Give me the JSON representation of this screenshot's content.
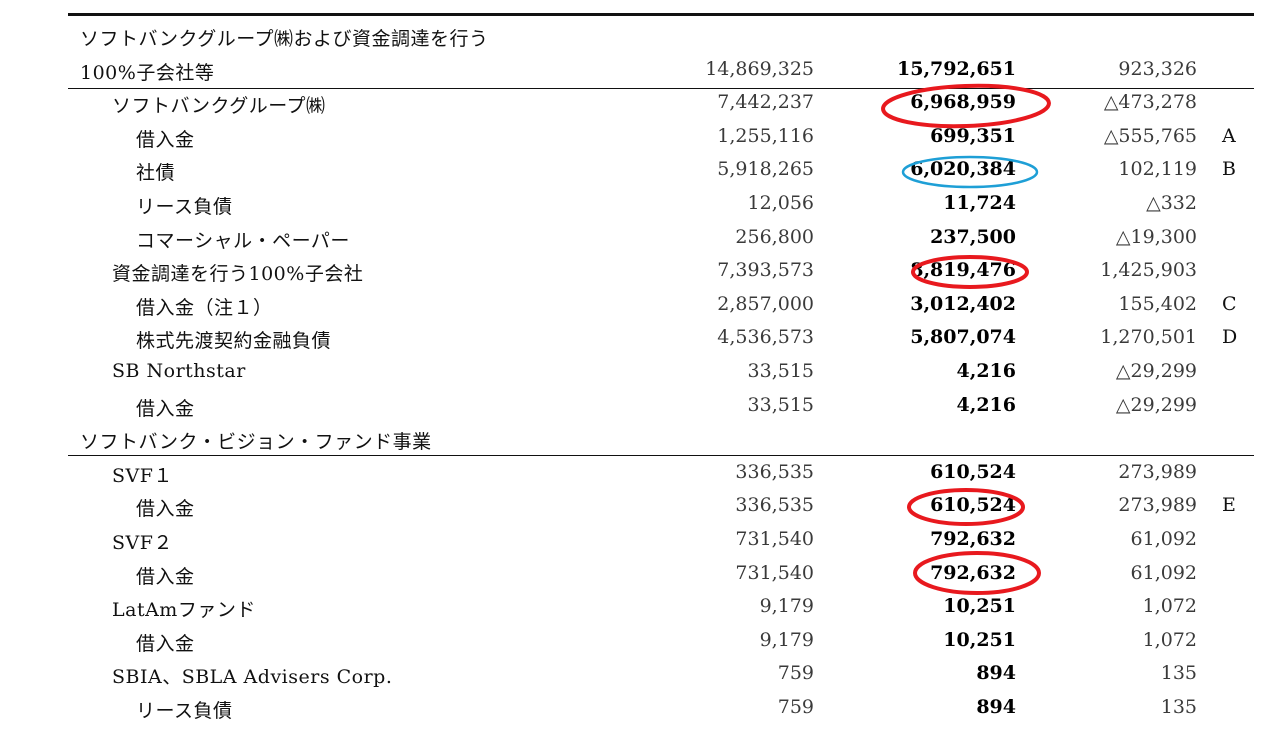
{
  "rows": [
    {
      "label": "ソフトバンクグループ㈱および資金調達を行う",
      "level": 0,
      "c1": "",
      "c2": "",
      "c3": "",
      "note": ""
    },
    {
      "label": "100%子会社等",
      "level": 0,
      "c1": "14,869,325",
      "c2": "15,792,651",
      "c3": "923,326",
      "note": ""
    },
    {
      "label": "ソフトバンクグループ㈱",
      "level": 1,
      "c1": "7,442,237",
      "c2": "6,968,959",
      "c3": "△473,278",
      "note": ""
    },
    {
      "label": "借入金",
      "level": 2,
      "c1": "1,255,116",
      "c2": "699,351",
      "c3": "△555,765",
      "note": "A"
    },
    {
      "label": "社債",
      "level": 2,
      "c1": "5,918,265",
      "c2": "6,020,384",
      "c3": "102,119",
      "note": "B"
    },
    {
      "label": "リース負債",
      "level": 2,
      "c1": "12,056",
      "c2": "11,724",
      "c3": "△332",
      "note": ""
    },
    {
      "label": "コマーシャル・ペーパー",
      "level": 2,
      "c1": "256,800",
      "c2": "237,500",
      "c3": "△19,300",
      "note": ""
    },
    {
      "label": "資金調達を行う100%子会社",
      "level": 1,
      "c1": "7,393,573",
      "c2": "8,819,476",
      "c3": "1,425,903",
      "note": ""
    },
    {
      "label": "借入金（注１）",
      "level": 2,
      "c1": "2,857,000",
      "c2": "3,012,402",
      "c3": "155,402",
      "note": "C"
    },
    {
      "label": "株式先渡契約金融負債",
      "level": 2,
      "c1": "4,536,573",
      "c2": "5,807,074",
      "c3": "1,270,501",
      "note": "D"
    },
    {
      "label": "SB Northstar",
      "level": 1,
      "c1": "33,515",
      "c2": "4,216",
      "c3": "△29,299",
      "note": ""
    },
    {
      "label": "借入金",
      "level": 2,
      "c1": "33,515",
      "c2": "4,216",
      "c3": "△29,299",
      "note": ""
    },
    {
      "label": "ソフトバンク・ビジョン・ファンド事業",
      "level": 0,
      "c1": "",
      "c2": "",
      "c3": "",
      "note": ""
    },
    {
      "label": "SVF１",
      "level": 1,
      "c1": "336,535",
      "c2": "610,524",
      "c3": "273,989",
      "note": ""
    },
    {
      "label": "借入金",
      "level": 2,
      "c1": "336,535",
      "c2": "610,524",
      "c3": "273,989",
      "note": "E"
    },
    {
      "label": "SVF２",
      "level": 1,
      "c1": "731,540",
      "c2": "792,632",
      "c3": "61,092",
      "note": ""
    },
    {
      "label": "借入金",
      "level": 2,
      "c1": "731,540",
      "c2": "792,632",
      "c3": "61,092",
      "note": ""
    },
    {
      "label": "LatAmファンド",
      "level": 1,
      "c1": "9,179",
      "c2": "10,251",
      "c3": "1,072",
      "note": ""
    },
    {
      "label": "借入金",
      "level": 2,
      "c1": "9,179",
      "c2": "10,251",
      "c3": "1,072",
      "note": ""
    },
    {
      "label": "SBIA、SBLA Advisers Corp.",
      "level": 1,
      "c1": "759",
      "c2": "894",
      "c3": "135",
      "note": ""
    },
    {
      "label": "リース負債",
      "level": 2,
      "c1": "759",
      "c2": "894",
      "c3": "135",
      "note": ""
    }
  ],
  "colors": {
    "highlight_red": "#e8191e",
    "highlight_blue": "#1e9fd6"
  }
}
